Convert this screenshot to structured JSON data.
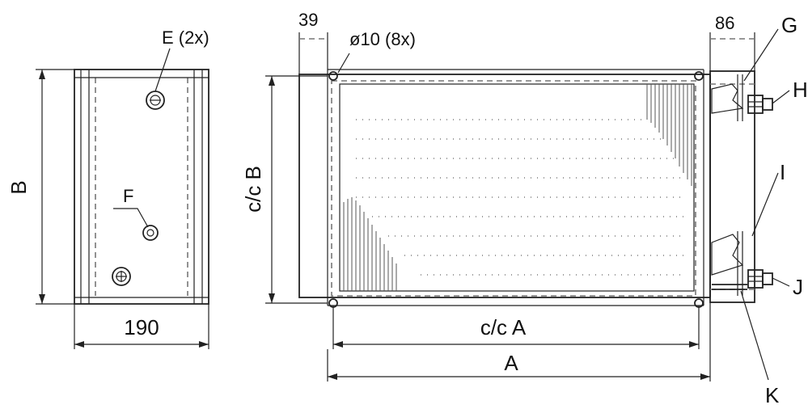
{
  "labels": {
    "dim_39": "39",
    "hole_spec": "ø10 (8x)",
    "dim_86": "86",
    "connection_e": "E (2x)",
    "connection_f": "F",
    "dim_b": "B",
    "dim_cc_b": "c/c B",
    "dim_190": "190",
    "dim_cc_a": "c/c A",
    "dim_a": "A",
    "callout_g": "G",
    "callout_h": "H",
    "callout_i": "I",
    "callout_j": "J",
    "callout_k": "K"
  }
}
